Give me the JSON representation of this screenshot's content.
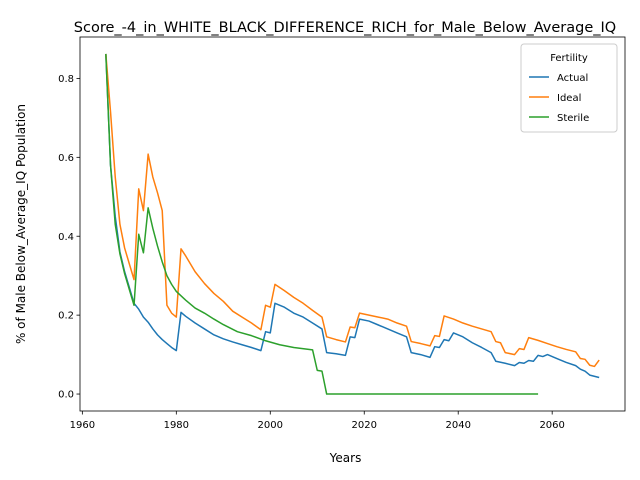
{
  "chart_data": {
    "type": "line",
    "title": "Score_-4_in_WHITE_BLACK_DIFFERENCE_RICH_for_Male_Below_Average_IQ",
    "xlabel": "Years",
    "ylabel": "% of Male Below_Average_IQ Population",
    "xlim": [
      1959.5,
      2075.5
    ],
    "ylim": [
      -0.043,
      0.905
    ],
    "xticks": [
      1960,
      1980,
      2000,
      2020,
      2040,
      2060
    ],
    "xtick_labels": [
      "1960",
      "1980",
      "2000",
      "2020",
      "2040",
      "2060"
    ],
    "yticks": [
      0.0,
      0.2,
      0.4,
      0.6,
      0.8
    ],
    "ytick_labels": [
      "0.0",
      "0.2",
      "0.4",
      "0.6",
      "0.8"
    ],
    "grid": false,
    "legend": {
      "title": "Fertility",
      "placement": "upper right"
    },
    "series": [
      {
        "name": "Actual",
        "color": "#1f77b4",
        "points": [
          [
            1965,
            0.862
          ],
          [
            1966,
            0.58
          ],
          [
            1967,
            0.45
          ],
          [
            1968,
            0.36
          ],
          [
            1969,
            0.31
          ],
          [
            1970,
            0.27
          ],
          [
            1971,
            0.23
          ],
          [
            1972,
            0.215
          ],
          [
            1973,
            0.195
          ],
          [
            1974,
            0.182
          ],
          [
            1975,
            0.165
          ],
          [
            1976,
            0.15
          ],
          [
            1977,
            0.138
          ],
          [
            1978,
            0.128
          ],
          [
            1979,
            0.118
          ],
          [
            1980,
            0.11
          ],
          [
            1981,
            0.207
          ],
          [
            1982,
            0.197
          ],
          [
            1984,
            0.18
          ],
          [
            1986,
            0.165
          ],
          [
            1988,
            0.15
          ],
          [
            1990,
            0.14
          ],
          [
            1992,
            0.132
          ],
          [
            1994,
            0.125
          ],
          [
            1996,
            0.118
          ],
          [
            1998,
            0.11
          ],
          [
            1999,
            0.158
          ],
          [
            2000,
            0.155
          ],
          [
            2001,
            0.23
          ],
          [
            2003,
            0.22
          ],
          [
            2005,
            0.205
          ],
          [
            2007,
            0.195
          ],
          [
            2009,
            0.18
          ],
          [
            2011,
            0.165
          ],
          [
            2012,
            0.105
          ],
          [
            2014,
            0.102
          ],
          [
            2016,
            0.098
          ],
          [
            2017,
            0.145
          ],
          [
            2018,
            0.143
          ],
          [
            2019,
            0.19
          ],
          [
            2021,
            0.185
          ],
          [
            2023,
            0.175
          ],
          [
            2025,
            0.165
          ],
          [
            2027,
            0.155
          ],
          [
            2029,
            0.145
          ],
          [
            2030,
            0.105
          ],
          [
            2032,
            0.1
          ],
          [
            2034,
            0.093
          ],
          [
            2035,
            0.12
          ],
          [
            2036,
            0.118
          ],
          [
            2037,
            0.138
          ],
          [
            2038,
            0.135
          ],
          [
            2039,
            0.155
          ],
          [
            2041,
            0.145
          ],
          [
            2043,
            0.13
          ],
          [
            2045,
            0.118
          ],
          [
            2047,
            0.105
          ],
          [
            2048,
            0.083
          ],
          [
            2050,
            0.078
          ],
          [
            2052,
            0.072
          ],
          [
            2053,
            0.08
          ],
          [
            2054,
            0.078
          ],
          [
            2055,
            0.085
          ],
          [
            2056,
            0.083
          ],
          [
            2057,
            0.098
          ],
          [
            2058,
            0.095
          ],
          [
            2059,
            0.1
          ],
          [
            2061,
            0.09
          ],
          [
            2063,
            0.08
          ],
          [
            2065,
            0.072
          ],
          [
            2066,
            0.063
          ],
          [
            2067,
            0.058
          ],
          [
            2068,
            0.048
          ],
          [
            2070,
            0.042
          ]
        ]
      },
      {
        "name": "Ideal",
        "color": "#ff7f0e",
        "points": [
          [
            1965,
            0.862
          ],
          [
            1966,
            0.715
          ],
          [
            1967,
            0.55
          ],
          [
            1968,
            0.43
          ],
          [
            1969,
            0.37
          ],
          [
            1970,
            0.33
          ],
          [
            1971,
            0.29
          ],
          [
            1972,
            0.52
          ],
          [
            1973,
            0.465
          ],
          [
            1974,
            0.608
          ],
          [
            1975,
            0.55
          ],
          [
            1976,
            0.51
          ],
          [
            1977,
            0.465
          ],
          [
            1978,
            0.225
          ],
          [
            1979,
            0.205
          ],
          [
            1980,
            0.195
          ],
          [
            1981,
            0.368
          ],
          [
            1982,
            0.35
          ],
          [
            1984,
            0.31
          ],
          [
            1986,
            0.28
          ],
          [
            1988,
            0.255
          ],
          [
            1990,
            0.235
          ],
          [
            1992,
            0.21
          ],
          [
            1994,
            0.195
          ],
          [
            1996,
            0.18
          ],
          [
            1998,
            0.163
          ],
          [
            1999,
            0.225
          ],
          [
            2000,
            0.22
          ],
          [
            2001,
            0.278
          ],
          [
            2003,
            0.262
          ],
          [
            2005,
            0.245
          ],
          [
            2007,
            0.23
          ],
          [
            2009,
            0.212
          ],
          [
            2011,
            0.195
          ],
          [
            2012,
            0.145
          ],
          [
            2014,
            0.138
          ],
          [
            2016,
            0.132
          ],
          [
            2017,
            0.17
          ],
          [
            2018,
            0.168
          ],
          [
            2019,
            0.205
          ],
          [
            2021,
            0.2
          ],
          [
            2023,
            0.195
          ],
          [
            2025,
            0.19
          ],
          [
            2027,
            0.18
          ],
          [
            2029,
            0.172
          ],
          [
            2030,
            0.133
          ],
          [
            2032,
            0.128
          ],
          [
            2034,
            0.122
          ],
          [
            2035,
            0.148
          ],
          [
            2036,
            0.146
          ],
          [
            2037,
            0.198
          ],
          [
            2039,
            0.19
          ],
          [
            2041,
            0.18
          ],
          [
            2043,
            0.172
          ],
          [
            2045,
            0.165
          ],
          [
            2047,
            0.158
          ],
          [
            2048,
            0.133
          ],
          [
            2049,
            0.13
          ],
          [
            2050,
            0.105
          ],
          [
            2052,
            0.1
          ],
          [
            2053,
            0.115
          ],
          [
            2054,
            0.113
          ],
          [
            2055,
            0.143
          ],
          [
            2057,
            0.136
          ],
          [
            2059,
            0.128
          ],
          [
            2061,
            0.12
          ],
          [
            2063,
            0.113
          ],
          [
            2065,
            0.107
          ],
          [
            2066,
            0.09
          ],
          [
            2067,
            0.088
          ],
          [
            2068,
            0.073
          ],
          [
            2069,
            0.07
          ],
          [
            2070,
            0.086
          ]
        ]
      },
      {
        "name": "Sterile",
        "color": "#2ca02c",
        "points": [
          [
            1965,
            0.862
          ],
          [
            1966,
            0.58
          ],
          [
            1967,
            0.43
          ],
          [
            1968,
            0.355
          ],
          [
            1969,
            0.305
          ],
          [
            1970,
            0.265
          ],
          [
            1971,
            0.225
          ],
          [
            1972,
            0.405
          ],
          [
            1973,
            0.358
          ],
          [
            1974,
            0.472
          ],
          [
            1975,
            0.42
          ],
          [
            1976,
            0.375
          ],
          [
            1977,
            0.335
          ],
          [
            1978,
            0.3
          ],
          [
            1979,
            0.278
          ],
          [
            1980,
            0.26
          ],
          [
            1982,
            0.238
          ],
          [
            1984,
            0.218
          ],
          [
            1986,
            0.205
          ],
          [
            1988,
            0.19
          ],
          [
            1990,
            0.176
          ],
          [
            1993,
            0.158
          ],
          [
            1996,
            0.148
          ],
          [
            1999,
            0.135
          ],
          [
            2002,
            0.125
          ],
          [
            2005,
            0.118
          ],
          [
            2009,
            0.112
          ],
          [
            2010,
            0.06
          ],
          [
            2011,
            0.058
          ],
          [
            2012,
            0.0
          ],
          [
            2057,
            0.0
          ]
        ]
      }
    ]
  }
}
